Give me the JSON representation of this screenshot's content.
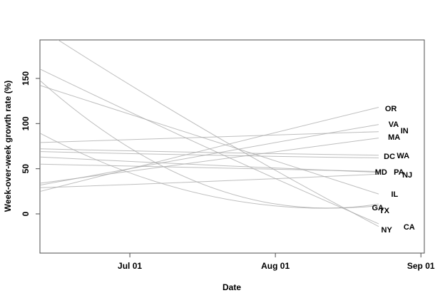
{
  "chart_data": {
    "type": "line",
    "title": "",
    "xlabel": "Date",
    "ylabel": "Week-over-week growth rate (%)",
    "grid": false,
    "legend": "none (lines labeled directly with state abbreviations at right end)",
    "line_color": "#a8a8a8",
    "x_axis": {
      "tick_labels": [
        "Jul 01",
        "Aug 01",
        "Sep 01"
      ],
      "tick_days": [
        19,
        50,
        81
      ],
      "range_days": [
        0,
        82
      ]
    },
    "y_axis": {
      "tick_labels": [
        "0",
        "50",
        "100",
        "150"
      ],
      "tick_values": [
        0,
        50,
        100,
        150
      ],
      "ylim": [
        -43,
        193
      ]
    },
    "series_note": "Per-state fitted trend lines of week-over-week growth rate (%); values sampled at start (left edge), midpoint, and right end of each line (days 0 / 36 / 72 of plotted span).",
    "series": [
      {
        "label": "OR",
        "days": [
          0,
          36,
          72
        ],
        "values": [
          25,
          72,
          118
        ],
        "label_pos": [
          74.6,
          117.0
        ]
      },
      {
        "label": "VA",
        "days": [
          0,
          36,
          72
        ],
        "values": [
          32,
          66,
          99
        ],
        "label_pos": [
          75.2,
          99.5
        ]
      },
      {
        "label": "IN",
        "days": [
          0,
          36,
          72
        ],
        "values": [
          79,
          85,
          91
        ],
        "label_pos": [
          77.5,
          92.4
        ]
      },
      {
        "label": "MA",
        "days": [
          0,
          36,
          72
        ],
        "values": [
          34,
          59,
          84
        ],
        "label_pos": [
          75.3,
          85.3
        ]
      },
      {
        "label": "WA",
        "days": [
          0,
          36,
          72
        ],
        "values": [
          72,
          68,
          65
        ],
        "label_pos": [
          77.2,
          64.7
        ]
      },
      {
        "label": "DC",
        "days": [
          0,
          36,
          72
        ],
        "values": [
          69,
          65,
          62
        ],
        "label_pos": [
          74.3,
          64.0
        ]
      },
      {
        "label": "MD",
        "days": [
          0,
          36,
          72
        ],
        "values": [
          63,
          54,
          46
        ],
        "label_pos": [
          72.5,
          46.6
        ]
      },
      {
        "label": "PA",
        "days": [
          0,
          36,
          72
        ],
        "values": [
          55,
          51,
          47
        ],
        "label_pos": [
          76.3,
          46.6
        ]
      },
      {
        "label": "NJ",
        "days": [
          0,
          36,
          72
        ],
        "values": [
          29,
          36,
          44
        ],
        "label_pos": [
          78.1,
          43.4
        ]
      },
      {
        "label": "IL",
        "days": [
          0,
          36,
          72
        ],
        "values": [
          142,
          82,
          22
        ],
        "label_pos": [
          75.4,
          22.1
        ]
      },
      {
        "label": "GA",
        "days": [
          0,
          36,
          72
        ],
        "values": [
          147,
          30,
          11
        ],
        "label_pos": [
          71.8,
          7.1
        ]
      },
      {
        "label": "TX",
        "days": [
          0,
          36,
          72
        ],
        "values": [
          89,
          20,
          9
        ],
        "label_pos": [
          73.2,
          3.9
        ]
      },
      {
        "label": "NY",
        "days": [
          0,
          36,
          72
        ],
        "values": [
          205,
          90,
          -14
        ],
        "label_pos": [
          73.7,
          -17.4
        ]
      },
      {
        "label": "CA",
        "days": [
          0,
          36,
          72
        ],
        "values": [
          160,
          72,
          -11
        ],
        "label_pos": [
          78.5,
          -14.2
        ]
      }
    ]
  }
}
